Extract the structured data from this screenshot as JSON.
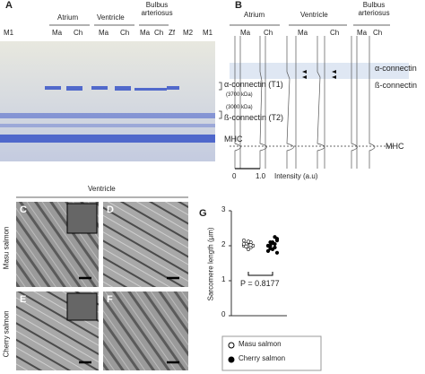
{
  "panel_a": {
    "label": "A",
    "groups": [
      "Atrium",
      "Ventricle",
      "Bulbus arteriosus"
    ],
    "lanes": [
      "M1",
      "Ma",
      "Ch",
      "Ma",
      "Ch",
      "Ma",
      "Ch",
      "Zf",
      "M2",
      "M1"
    ],
    "bands": [
      "α-connectin (T1)",
      "(3700 kDa)",
      "(3000 kDa)",
      "ß-connectin (T2)",
      "MHC"
    ]
  },
  "panel_b": {
    "label": "B",
    "groups": [
      "Atrium",
      "Ventricle",
      "Bulbus arteriosus"
    ],
    "lanes": [
      "Ma",
      "Ch",
      "Ma",
      "Ch",
      "Ma",
      "Ch"
    ],
    "bands": [
      "α-connectin",
      "ß-connectin",
      "MHC"
    ],
    "scale": [
      "0",
      "1.0"
    ],
    "axis_label": "Intensity (a.u)"
  },
  "micrographs": {
    "title": "Ventricle",
    "panels": [
      "C",
      "D",
      "E",
      "F"
    ],
    "rows": [
      "Masu salmon",
      "Cherry salmon"
    ]
  },
  "chart_data": {
    "type": "scatter",
    "label": "G",
    "y_label": "Sarcomere length (µm)",
    "ylim": [
      0,
      3
    ],
    "yticks": [
      0,
      1,
      2,
      3
    ],
    "annotation": "P = 0.8177",
    "series": [
      {
        "name": "Masu salmon",
        "color": "#ffffff",
        "values": [
          2.0,
          2.05,
          2.1,
          1.95,
          2.0,
          2.15,
          2.05,
          1.9,
          2.1,
          2.0,
          2.05,
          1.98,
          2.12,
          2.02
        ]
      },
      {
        "name": "Cherry salmon",
        "color": "#000000",
        "values": [
          2.0,
          2.1,
          1.9,
          2.05,
          2.2,
          1.85,
          2.0,
          2.1,
          1.95,
          2.15,
          2.0,
          1.92,
          2.08,
          2.25,
          1.8
        ]
      }
    ]
  }
}
